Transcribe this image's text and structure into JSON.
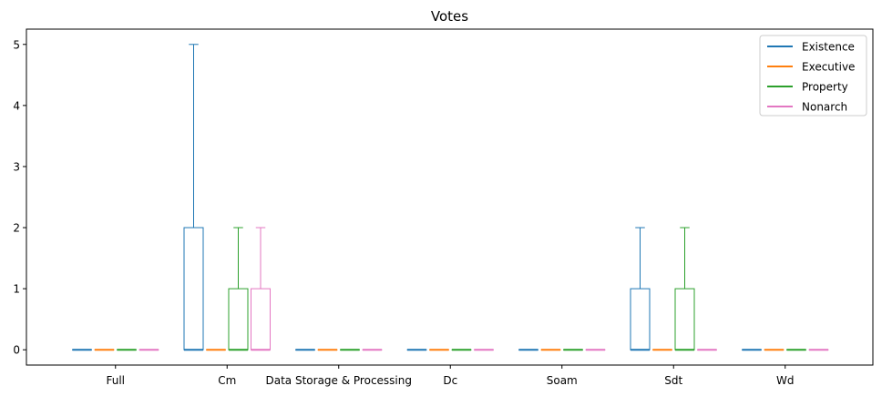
{
  "chart_data": {
    "type": "box",
    "title": "Votes",
    "xlabel": "",
    "ylabel": "",
    "ylim": [
      -0.25,
      5.25
    ],
    "yticks": [
      0,
      1,
      2,
      3,
      4,
      5
    ],
    "categories": [
      "Full",
      "Cm",
      "Data Storage & Processing",
      "Dc",
      "Soam",
      "Sdt",
      "Wd"
    ],
    "legend_position": "top-right",
    "grid": false,
    "series": [
      {
        "name": "Existence",
        "color": "#1f77b4",
        "boxes": [
          {
            "whislo": 0,
            "q1": 0,
            "med": 0,
            "q3": 0,
            "whishi": 0
          },
          {
            "whislo": 0,
            "q1": 0,
            "med": 0,
            "q3": 2,
            "whishi": 5
          },
          {
            "whislo": 0,
            "q1": 0,
            "med": 0,
            "q3": 0,
            "whishi": 0
          },
          {
            "whislo": 0,
            "q1": 0,
            "med": 0,
            "q3": 0,
            "whishi": 0
          },
          {
            "whislo": 0,
            "q1": 0,
            "med": 0,
            "q3": 0,
            "whishi": 0
          },
          {
            "whislo": 0,
            "q1": 0,
            "med": 0,
            "q3": 1,
            "whishi": 2
          },
          {
            "whislo": 0,
            "q1": 0,
            "med": 0,
            "q3": 0,
            "whishi": 0
          }
        ]
      },
      {
        "name": "Executive",
        "color": "#ff7f0e",
        "boxes": [
          {
            "whislo": 0,
            "q1": 0,
            "med": 0,
            "q3": 0,
            "whishi": 0
          },
          {
            "whislo": 0,
            "q1": 0,
            "med": 0,
            "q3": 0,
            "whishi": 0
          },
          {
            "whislo": 0,
            "q1": 0,
            "med": 0,
            "q3": 0,
            "whishi": 0
          },
          {
            "whislo": 0,
            "q1": 0,
            "med": 0,
            "q3": 0,
            "whishi": 0
          },
          {
            "whislo": 0,
            "q1": 0,
            "med": 0,
            "q3": 0,
            "whishi": 0
          },
          {
            "whislo": 0,
            "q1": 0,
            "med": 0,
            "q3": 0,
            "whishi": 0
          },
          {
            "whislo": 0,
            "q1": 0,
            "med": 0,
            "q3": 0,
            "whishi": 0
          }
        ]
      },
      {
        "name": "Property",
        "color": "#2ca02c",
        "boxes": [
          {
            "whislo": 0,
            "q1": 0,
            "med": 0,
            "q3": 0,
            "whishi": 0
          },
          {
            "whislo": 0,
            "q1": 0,
            "med": 0,
            "q3": 1,
            "whishi": 2
          },
          {
            "whislo": 0,
            "q1": 0,
            "med": 0,
            "q3": 0,
            "whishi": 0
          },
          {
            "whislo": 0,
            "q1": 0,
            "med": 0,
            "q3": 0,
            "whishi": 0
          },
          {
            "whislo": 0,
            "q1": 0,
            "med": 0,
            "q3": 0,
            "whishi": 0
          },
          {
            "whislo": 0,
            "q1": 0,
            "med": 0,
            "q3": 1,
            "whishi": 2
          },
          {
            "whislo": 0,
            "q1": 0,
            "med": 0,
            "q3": 0,
            "whishi": 0
          }
        ]
      },
      {
        "name": "Nonarch",
        "color": "#e377c2",
        "boxes": [
          {
            "whislo": 0,
            "q1": 0,
            "med": 0,
            "q3": 0,
            "whishi": 0
          },
          {
            "whislo": 0,
            "q1": 0,
            "med": 0,
            "q3": 1,
            "whishi": 2
          },
          {
            "whislo": 0,
            "q1": 0,
            "med": 0,
            "q3": 0,
            "whishi": 0
          },
          {
            "whislo": 0,
            "q1": 0,
            "med": 0,
            "q3": 0,
            "whishi": 0
          },
          {
            "whislo": 0,
            "q1": 0,
            "med": 0,
            "q3": 0,
            "whishi": 0
          },
          {
            "whislo": 0,
            "q1": 0,
            "med": 0,
            "q3": 0,
            "whishi": 0
          },
          {
            "whislo": 0,
            "q1": 0,
            "med": 0,
            "q3": 0,
            "whishi": 0
          }
        ]
      }
    ]
  }
}
